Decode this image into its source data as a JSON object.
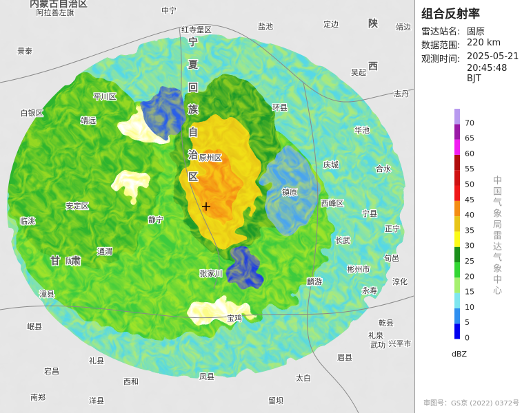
{
  "panel": {
    "title": "组合反射率",
    "fields": [
      {
        "label": "雷达站名:",
        "value": "固原"
      },
      {
        "label": "数据范围:",
        "value": "220 km"
      },
      {
        "label": "观测时间:",
        "value": "2025-05-21"
      }
    ],
    "time_line2": "20:45:48 BJT"
  },
  "legend": {
    "levels": [
      0,
      5,
      10,
      15,
      20,
      25,
      30,
      35,
      40,
      45,
      50,
      55,
      60,
      65,
      70
    ],
    "colors": [
      "#0000f0",
      "#2f8ff0",
      "#7fe6ef",
      "#a6f06f",
      "#33d633",
      "#1b8f1b",
      "#fbfb19",
      "#e8c518",
      "#f48d13",
      "#f01818",
      "#cf1212",
      "#b00d0d",
      "#f21cf2",
      "#9a1aa6",
      "#b89aef"
    ],
    "unit": "dBZ",
    "org": "中国气象局雷达气象中心"
  },
  "approval": "审图号：GS京 (2022) 0372号",
  "map_labels": [
    "内蒙古自治区",
    "阿拉善左旗",
    "中宁",
    "红寺堡区",
    "盐池",
    "定边",
    "陕",
    "靖边",
    "景泰",
    "吴起",
    "西",
    "志丹",
    "平川区",
    "白银区",
    "靖远",
    "环县",
    "华池",
    "原州区",
    "庆城",
    "合水",
    "镇原",
    "西峰区",
    "宁县",
    "正宁",
    "临洮",
    "安定区",
    "静宁",
    "长武",
    "旬邑",
    "彬州市",
    "陇西",
    "通渭",
    "张家川",
    "麟游",
    "永寿",
    "淳化",
    "漳县",
    "岷县",
    "宕昌",
    "西和",
    "礼县",
    "太白",
    "凤县",
    "眉县",
    "宝鸡",
    "乾县",
    "礼泉",
    "武功",
    "兴平市",
    "留坝",
    "南郑",
    "洋县",
    "宁",
    "夏",
    "回",
    "族",
    "自",
    "治",
    "区",
    "甘",
    "肃"
  ]
}
